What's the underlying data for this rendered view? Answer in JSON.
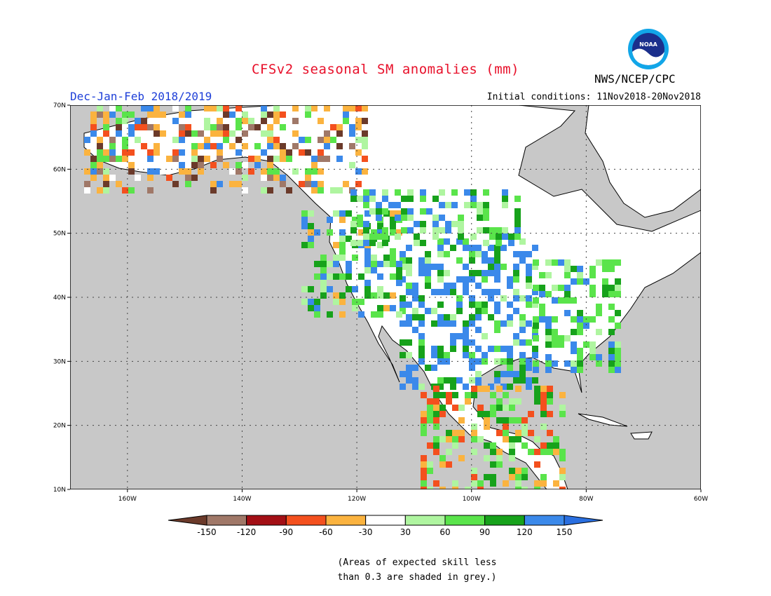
{
  "title": "CFSv2 seasonal SM anomalies (mm)",
  "season": "Dec-Jan-Feb 2018/2019",
  "initial_conditions": "Initial conditions: 11Nov2018-20Nov2018",
  "agency": "NWS/NCEP/CPC",
  "logo_text": "NOAA",
  "map": {
    "region": "North America",
    "lat_range": [
      10,
      70
    ],
    "lon_range": [
      -170,
      -60
    ],
    "lat_ticks": [
      {
        "value": 70,
        "label": "70N"
      },
      {
        "value": 60,
        "label": "60N"
      },
      {
        "value": 50,
        "label": "50N"
      },
      {
        "value": 40,
        "label": "40N"
      },
      {
        "value": 30,
        "label": "30N"
      },
      {
        "value": 20,
        "label": "20N"
      },
      {
        "value": 10,
        "label": "10N"
      }
    ],
    "lon_ticks": [
      {
        "value": -160,
        "label": "160W"
      },
      {
        "value": -140,
        "label": "140W"
      },
      {
        "value": -120,
        "label": "120W"
      },
      {
        "value": -100,
        "label": "100W"
      },
      {
        "value": -80,
        "label": "80W"
      },
      {
        "value": -60,
        "label": "60W"
      }
    ],
    "ocean_color": "#c8c8c8",
    "land_color": "#ffffff"
  },
  "colorbar": {
    "ticks": [
      "-150",
      "-120",
      "-90",
      "-60",
      "-30",
      "30",
      "60",
      "90",
      "120",
      "150"
    ],
    "colors": [
      "#6b3a2a",
      "#a07868",
      "#a30f15",
      "#f4501e",
      "#fbb33f",
      "#ffffff",
      "#aff5a0",
      "#5ae44b",
      "#17a21b",
      "#3b89ea",
      "#2a6fe0"
    ]
  },
  "note_lines": [
    "(Areas of expected skill less",
    "than 0.3 are shaded in grey.)"
  ]
}
